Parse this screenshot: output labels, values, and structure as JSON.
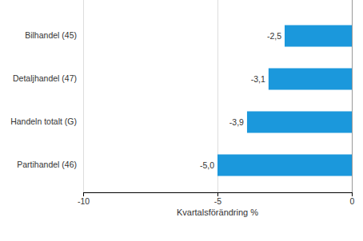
{
  "chart_data": {
    "type": "bar",
    "orientation": "horizontal",
    "categories": [
      "Bilhandel (45)",
      "Detaljhandel (47)",
      "Handeln totalt (G)",
      "Partihandel (46)"
    ],
    "values": [
      -2.5,
      -3.1,
      -3.9,
      -5.0
    ],
    "value_labels": [
      "-2,5",
      "-3,1",
      "-3,9",
      "-5,0"
    ],
    "data_labels": true,
    "color": "#1b98dc",
    "xlabel": "Kvartalsförändring %",
    "xlim": [
      -10,
      0
    ],
    "xticks": [
      -10,
      -5,
      0
    ],
    "grid": true
  }
}
